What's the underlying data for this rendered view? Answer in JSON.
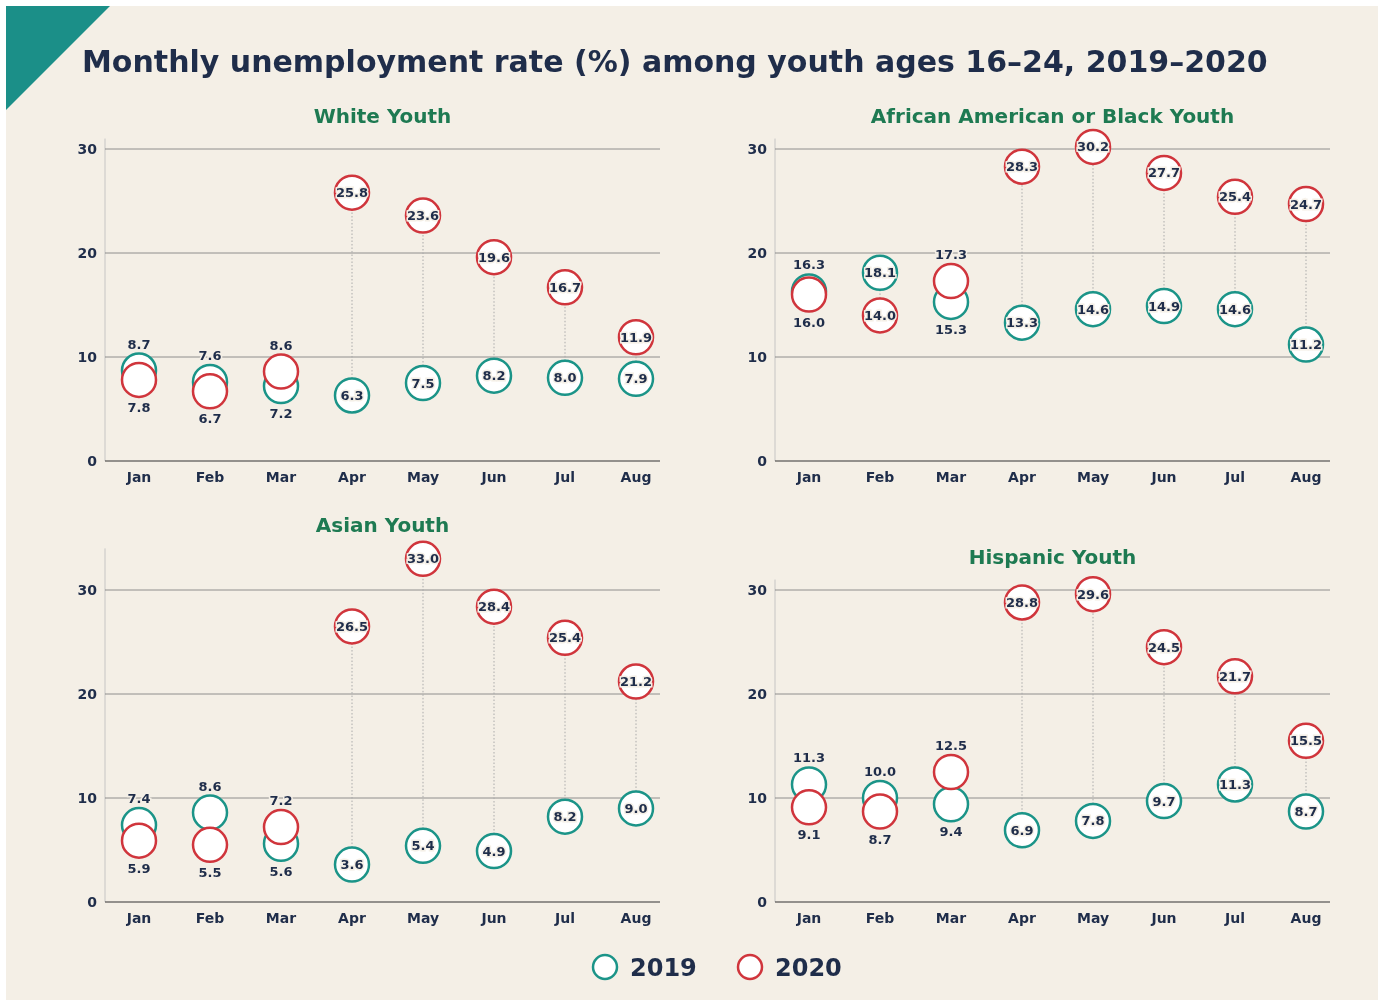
{
  "chart_data": [
    {
      "type": "scatter",
      "title": "White Youth",
      "annotations": [
        "Monthly unemployment rate (%) among youth ages 16–24, 2019–2020"
      ],
      "categories": [
        "Jan",
        "Feb",
        "Mar",
        "Apr",
        "May",
        "Jun",
        "Jul",
        "Aug"
      ],
      "ylim": [
        0,
        31
      ],
      "yticks": [
        0,
        10,
        20,
        30
      ],
      "grid": "y",
      "marker": "circle",
      "legend": false,
      "series": [
        {
          "color": "#1b9488",
          "values": [
            8.7,
            7.6,
            7.2,
            6.3,
            7.5,
            8.2,
            8.0,
            7.9
          ],
          "value_labels": [
            "8.7",
            "7.6",
            "7.2",
            "6.3",
            "7.5",
            "8.2",
            "8.0",
            "7.9"
          ]
        },
        {
          "color": "#d0353c",
          "values": [
            7.8,
            6.7,
            8.6,
            25.8,
            23.6,
            19.6,
            16.7,
            11.9
          ],
          "value_labels": [
            "7.8",
            "6.7",
            "8.6",
            "25.8",
            "23.6",
            "19.6",
            "16.7",
            "11.9"
          ]
        }
      ]
    },
    {
      "type": "scatter",
      "title": "African American or Black Youth",
      "categories": [
        "Jan",
        "Feb",
        "Mar",
        "Apr",
        "May",
        "Jun",
        "Jul",
        "Aug"
      ],
      "ylim": [
        0,
        31
      ],
      "yticks": [
        0,
        10,
        20,
        30
      ],
      "grid": "y",
      "marker": "circle",
      "legend": false,
      "series": [
        {
          "color": "#1b9488",
          "values": [
            16.3,
            18.1,
            15.3,
            13.3,
            14.6,
            14.9,
            14.6,
            11.2
          ],
          "value_labels": [
            "16.3",
            "18.1",
            "15.3",
            "13.3",
            "14.6",
            "14.9",
            "14.6",
            "11.2"
          ]
        },
        {
          "color": "#d0353c",
          "values": [
            16.0,
            14.0,
            17.3,
            28.3,
            30.2,
            27.7,
            25.4,
            24.7
          ],
          "value_labels": [
            "16.0",
            "14.0",
            "17.3",
            "28.3",
            "30.2",
            "27.7",
            "25.4",
            "24.7"
          ]
        }
      ]
    },
    {
      "type": "scatter",
      "title": "Asian Youth",
      "categories": [
        "Jan",
        "Feb",
        "Mar",
        "Apr",
        "May",
        "Jun",
        "Jul",
        "Aug"
      ],
      "ylim": [
        0,
        34
      ],
      "yticks": [
        0,
        10,
        20,
        30
      ],
      "grid": "y",
      "marker": "circle",
      "legend": false,
      "series": [
        {
          "color": "#1b9488",
          "values": [
            7.4,
            8.6,
            5.6,
            3.6,
            5.4,
            4.9,
            8.2,
            9.0
          ],
          "value_labels": [
            "7.4",
            "8.6",
            "5.6",
            "3.6",
            "5.4",
            "4.9",
            "8.2",
            "9.0"
          ]
        },
        {
          "color": "#d0353c",
          "values": [
            5.9,
            5.5,
            7.2,
            26.5,
            33.0,
            28.4,
            25.4,
            21.2
          ],
          "value_labels": [
            "5.9",
            "5.5",
            "7.2",
            "26.5",
            "33.0",
            "28.4",
            "25.4",
            "21.2"
          ]
        }
      ]
    },
    {
      "type": "scatter",
      "title": "Hispanic Youth",
      "categories": [
        "Jan",
        "Feb",
        "Mar",
        "Apr",
        "May",
        "Jun",
        "Jul",
        "Aug"
      ],
      "ylim": [
        0,
        31
      ],
      "yticks": [
        0,
        10,
        20,
        30
      ],
      "grid": "y",
      "marker": "circle",
      "legend": "bottom",
      "series": [
        {
          "name": "2019",
          "color": "#1b9488",
          "values": [
            11.3,
            10.0,
            9.4,
            6.9,
            7.8,
            9.7,
            11.3,
            8.7
          ],
          "value_labels": [
            "11.3",
            "10.0",
            "9.4",
            "6.9",
            "7.8",
            "9.7",
            "11.3",
            "8.7"
          ]
        },
        {
          "name": "2020",
          "color": "#d0353c",
          "values": [
            9.1,
            8.7,
            12.5,
            28.8,
            29.6,
            24.5,
            21.7,
            15.5
          ],
          "value_labels": [
            "9.1",
            "8.7",
            "12.5",
            "28.8",
            "29.6",
            "24.5",
            "21.7",
            "15.5"
          ]
        }
      ]
    }
  ]
}
